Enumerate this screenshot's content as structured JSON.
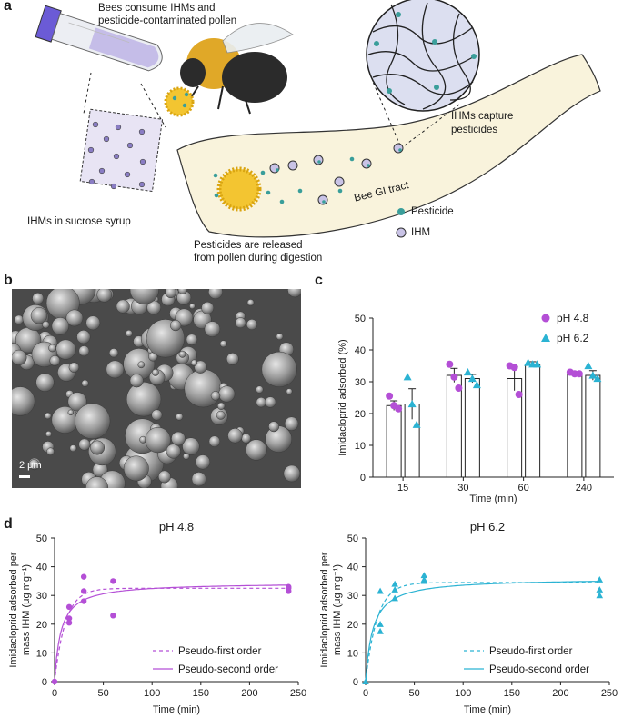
{
  "colors": {
    "ph48": "#b44fd6",
    "ph62": "#2bb3d3",
    "pesticide": "#3a9e9a",
    "ihm": "#c9c3e6",
    "gi_tract": "#f9f3dc"
  },
  "panel_a": {
    "label": "a",
    "text_bees": "Bees consume IHMs and",
    "text_bees2": "pesticide-contaminated pollen",
    "text_ihm_syrup": "IHMs in sucrose syrup",
    "text_capture1": "IHMs capture",
    "text_capture2": "pesticides",
    "text_gi": "Bee GI tract",
    "text_released1": "Pesticides are released",
    "text_released2": "from pollen during digestion",
    "legend": [
      {
        "label": "Pesticide",
        "icon": "pesticide-dot"
      },
      {
        "label": "IHM",
        "icon": "ihm-dot"
      }
    ]
  },
  "panel_b": {
    "label": "b",
    "scale_bar": "2 μm"
  },
  "panel_c": {
    "label": "c"
  },
  "panel_d": {
    "label": "d"
  },
  "chart_data": [
    {
      "type": "bar",
      "panel": "c",
      "xlabel": "Time (min)",
      "ylabel": "Imidacloprid adsorbed (%)",
      "ylim": [
        0,
        50
      ],
      "yticks": [
        0,
        10,
        20,
        30,
        40,
        50
      ],
      "categories": [
        "15",
        "30",
        "60",
        "240"
      ],
      "legend_position": "top-right",
      "series": [
        {
          "name": "pH 4.8",
          "marker": "circle",
          "values": [
            22.5,
            32,
            31,
            32.5
          ],
          "errors": [
            1.5,
            2.2,
            3.8,
            0.6
          ],
          "points": [
            [
              25.5,
              22.5,
              21.5
            ],
            [
              35.5,
              31.5,
              28
            ],
            [
              35,
              34.5,
              26
            ],
            [
              33,
              32.5,
              32.5
            ]
          ]
        },
        {
          "name": "pH 6.2",
          "marker": "triangle",
          "values": [
            23,
            31,
            35.5,
            32
          ],
          "errors": [
            4.8,
            1.3,
            0.8,
            1.5
          ],
          "points": [
            [
              31.5,
              23,
              16.5
            ],
            [
              33,
              31,
              29
            ],
            [
              36,
              35.5,
              35.5
            ],
            [
              35,
              32,
              31
            ]
          ]
        }
      ]
    },
    {
      "type": "scatter",
      "panel": "d-left",
      "title": "pH 4.8",
      "xlabel": "Time (min)",
      "ylabel": [
        "Imidacloprid adsorbed per",
        "mass IHM (μg mg⁻¹)"
      ],
      "xlim": [
        0,
        250
      ],
      "ylim": [
        0,
        50
      ],
      "xticks": [
        0,
        50,
        100,
        150,
        200,
        250
      ],
      "yticks": [
        0,
        10,
        20,
        30,
        40,
        50
      ],
      "points": [
        [
          0,
          0
        ],
        [
          15,
          26
        ],
        [
          15,
          22
        ],
        [
          15,
          20.5
        ],
        [
          30,
          36.5
        ],
        [
          30,
          31.5
        ],
        [
          30,
          28
        ],
        [
          60,
          35
        ],
        [
          60,
          23
        ],
        [
          240,
          33
        ],
        [
          240,
          31.5
        ],
        [
          240,
          32.5
        ]
      ],
      "fits": [
        {
          "name": "Pseudo-first order",
          "style": "dashed",
          "qe": 32.5,
          "k": 0.09
        },
        {
          "name": "Pseudo-second order",
          "style": "solid",
          "qe": 34.5,
          "k2": 0.0045
        }
      ],
      "legend_position": "bottom-right"
    },
    {
      "type": "scatter",
      "panel": "d-right",
      "title": "pH 6.2",
      "xlabel": "Time (min)",
      "ylabel": [
        "Imidacloprid adsorbed per",
        "mass IHM (μg mg⁻¹)"
      ],
      "xlim": [
        0,
        250
      ],
      "ylim": [
        0,
        50
      ],
      "xticks": [
        0,
        50,
        100,
        150,
        200,
        250
      ],
      "yticks": [
        0,
        10,
        20,
        30,
        40,
        50
      ],
      "points": [
        [
          0,
          0
        ],
        [
          15,
          31.5
        ],
        [
          15,
          20
        ],
        [
          15,
          17.5
        ],
        [
          30,
          34
        ],
        [
          30,
          32
        ],
        [
          30,
          29
        ],
        [
          60,
          37
        ],
        [
          60,
          35.5
        ],
        [
          60,
          35
        ],
        [
          240,
          35.5
        ],
        [
          240,
          32
        ],
        [
          240,
          30
        ]
      ],
      "fits": [
        {
          "name": "Pseudo-first order",
          "style": "dashed",
          "qe": 34.5,
          "k": 0.085
        },
        {
          "name": "Pseudo-second order",
          "style": "solid",
          "qe": 36,
          "k2": 0.0038
        }
      ],
      "legend_position": "bottom-right"
    }
  ]
}
